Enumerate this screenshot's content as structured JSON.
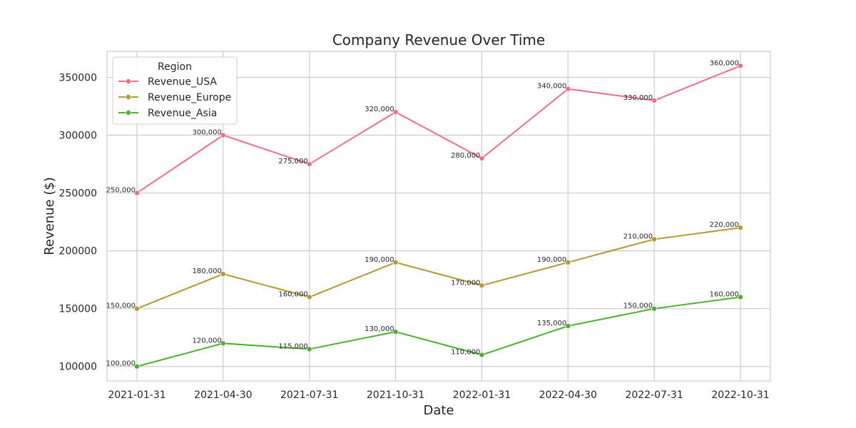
{
  "chart_data": {
    "type": "line",
    "title": "Company Revenue Over Time",
    "xlabel": "Date",
    "ylabel": "Revenue ($)",
    "x": [
      "2021-01-31",
      "2021-04-30",
      "2021-07-31",
      "2021-10-31",
      "2022-01-31",
      "2022-04-30",
      "2022-07-31",
      "2022-10-31"
    ],
    "ylim": [
      87500,
      372500
    ],
    "yticks": [
      100000,
      150000,
      200000,
      250000,
      300000,
      350000
    ],
    "grid": true,
    "legend": {
      "title": "Region",
      "placement": "top-left"
    },
    "series": [
      {
        "name": "Revenue_USA",
        "color": "#f06e84",
        "values": [
          250000,
          300000,
          275000,
          320000,
          280000,
          340000,
          330000,
          360000
        ],
        "labels": [
          "250,000",
          "300,000",
          "275,000",
          "320,000",
          "280,000",
          "340,000",
          "330,000",
          "360,000"
        ]
      },
      {
        "name": "Revenue_Europe",
        "color": "#b89630",
        "values": [
          150000,
          180000,
          160000,
          190000,
          170000,
          190000,
          210000,
          220000
        ],
        "labels": [
          "150,000",
          "180,000",
          "160,000",
          "190,000",
          "170,000",
          "190,000",
          "210,000",
          "220,000"
        ]
      },
      {
        "name": "Revenue_Asia",
        "color": "#4daf2f",
        "values": [
          100000,
          120000,
          115000,
          130000,
          110000,
          135000,
          150000,
          160000
        ],
        "labels": [
          "100,000",
          "120,000",
          "115,000",
          "130,000",
          "110,000",
          "135,000",
          "150,000",
          "160,000"
        ]
      }
    ]
  }
}
